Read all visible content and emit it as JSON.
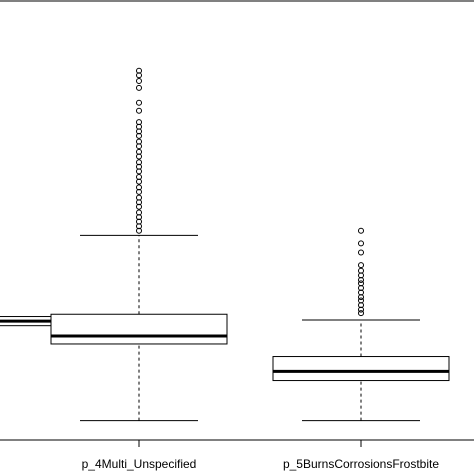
{
  "chart_data": {
    "type": "box",
    "title": "",
    "xlabel": "",
    "ylabel": "",
    "categories": [
      "",
      "p_4Multi_Unspecified",
      "p_5BurnsCorrosionsFrostbite"
    ],
    "boxes": [
      {
        "name": "",
        "partial": true,
        "q1": 0.83,
        "median": 0.87,
        "q3": 0.91
      },
      {
        "name": "p_4Multi_Unspecified",
        "whisker_low": 0.0,
        "q1": 0.67,
        "median": 0.74,
        "q3": 0.93,
        "whisker_high": 1.62,
        "outliers": [
          3.06,
          3.02,
          2.97,
          2.91,
          2.78,
          2.71,
          2.61,
          2.57,
          2.53,
          2.49,
          2.44,
          2.4,
          2.35,
          2.31,
          2.26,
          2.22,
          2.18,
          2.13,
          2.09,
          2.04,
          2.0,
          1.95,
          1.91,
          1.87,
          1.82,
          1.78,
          1.74,
          1.7,
          1.66
        ]
      },
      {
        "name": "p_5BurnsCorrosionsFrostbite",
        "whisker_low": 0.0,
        "q1": 0.35,
        "median": 0.43,
        "q3": 0.56,
        "whisker_high": 0.88,
        "outliers": [
          1.66,
          1.55,
          1.47,
          1.36,
          1.31,
          1.27,
          1.23,
          1.2,
          1.16,
          1.12,
          1.08,
          1.05,
          1.01,
          0.97,
          0.94
        ]
      }
    ],
    "ylim": [
      -0.17,
      3.67
    ]
  }
}
